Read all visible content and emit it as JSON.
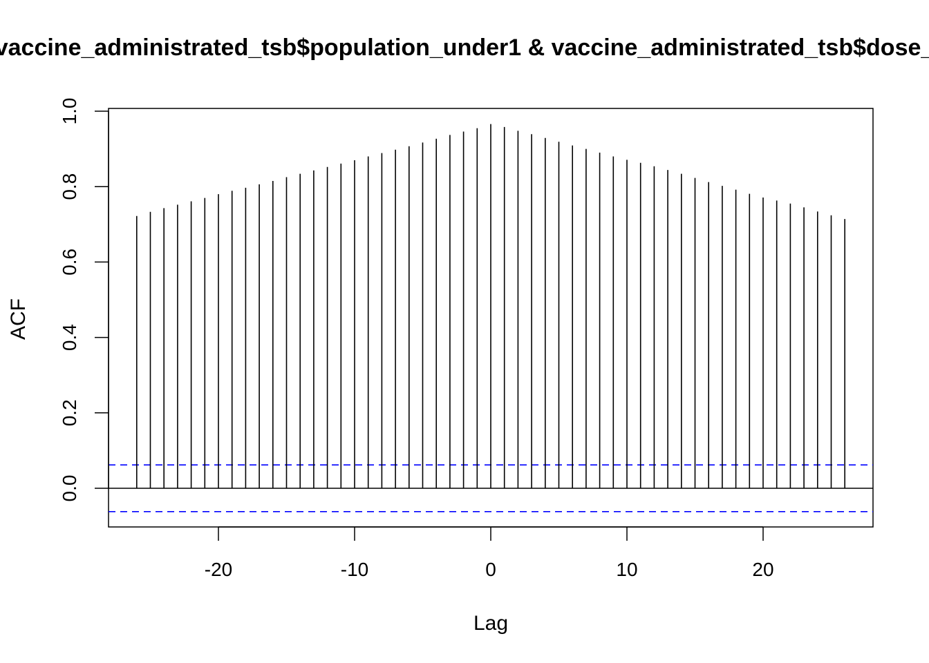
{
  "chart_data": {
    "type": "bar",
    "title": "vaccine_administrated_tsb$population_under1 & vaccine_administrated_tsb$dose_",
    "xlabel": "Lag",
    "ylabel": "ACF",
    "xlim": [
      -28,
      28
    ],
    "ylim": [
      -0.1,
      1.0
    ],
    "x_ticks": [
      -20,
      -10,
      0,
      10,
      20
    ],
    "x_tick_labels": [
      "-20",
      "-10",
      "0",
      "10",
      "20"
    ],
    "y_ticks": [
      0.0,
      0.2,
      0.4,
      0.6,
      0.8,
      1.0
    ],
    "y_tick_labels": [
      "0.0",
      "0.2",
      "0.4",
      "0.6",
      "0.8",
      "1.0"
    ],
    "confidence_band": 0.062,
    "confidence_color": "#0000ff",
    "line_color": "#000000",
    "lags": [
      -26,
      -25,
      -24,
      -23,
      -22,
      -21,
      -20,
      -19,
      -18,
      -17,
      -16,
      -15,
      -14,
      -13,
      -12,
      -11,
      -10,
      -9,
      -8,
      -7,
      -6,
      -5,
      -4,
      -3,
      -2,
      -1,
      0,
      1,
      2,
      3,
      4,
      5,
      6,
      7,
      8,
      9,
      10,
      11,
      12,
      13,
      14,
      15,
      16,
      17,
      18,
      19,
      20,
      21,
      22,
      23,
      24,
      25,
      26
    ],
    "values": [
      0.722,
      0.733,
      0.743,
      0.752,
      0.761,
      0.77,
      0.78,
      0.789,
      0.797,
      0.806,
      0.815,
      0.825,
      0.834,
      0.843,
      0.852,
      0.861,
      0.87,
      0.88,
      0.889,
      0.898,
      0.907,
      0.917,
      0.927,
      0.937,
      0.946,
      0.955,
      0.966,
      0.958,
      0.948,
      0.939,
      0.929,
      0.919,
      0.909,
      0.9,
      0.89,
      0.88,
      0.871,
      0.863,
      0.854,
      0.844,
      0.834,
      0.823,
      0.812,
      0.802,
      0.792,
      0.781,
      0.771,
      0.763,
      0.755,
      0.745,
      0.734,
      0.724,
      0.714
    ]
  }
}
